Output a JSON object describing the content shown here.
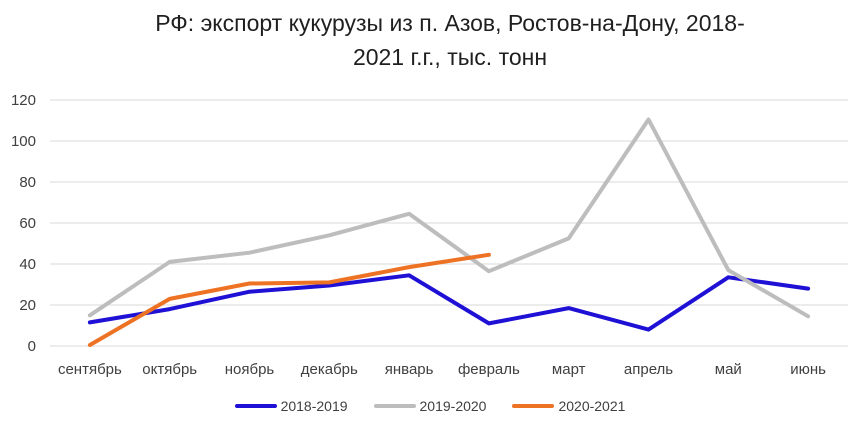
{
  "chart_data": {
    "type": "line",
    "title_line1": "РФ: экспорт кукурузы из п. Азов, Ростов-на-Дону, 2018-",
    "title_line2": "2021 г.г., тыс. тонн",
    "categories": [
      "сентябрь",
      "октябрь",
      "ноябрь",
      "декабрь",
      "январь",
      "февраль",
      "март",
      "апрель",
      "май",
      "июнь"
    ],
    "ylim": [
      0,
      120
    ],
    "yticks": [
      0,
      20,
      40,
      60,
      80,
      100,
      120
    ],
    "grid": true,
    "legend_position": "bottom",
    "series": [
      {
        "name": "2018-2019",
        "color": "#1f10d6",
        "values": [
          11.5,
          18,
          26.5,
          29.5,
          34.5,
          11,
          18.5,
          8,
          33.5,
          28
        ]
      },
      {
        "name": "2019-2020",
        "color": "#bdbdbd",
        "values": [
          15,
          41,
          45.5,
          54,
          64.5,
          36.5,
          52.5,
          110.5,
          37,
          14.5
        ]
      },
      {
        "name": "2020-2021",
        "color": "#ed7223",
        "values": [
          0.5,
          23,
          30.5,
          31,
          38.5,
          44.5,
          null,
          null,
          null,
          null
        ]
      }
    ]
  }
}
